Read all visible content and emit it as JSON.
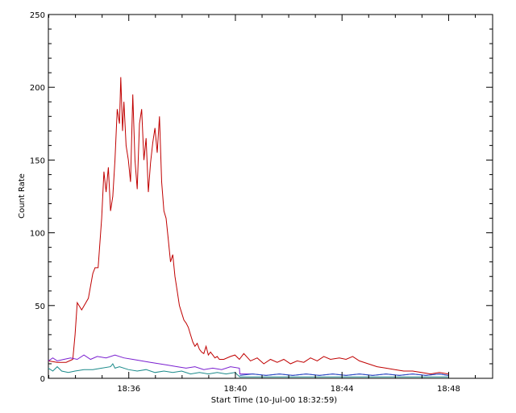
{
  "chart_data": {
    "type": "line",
    "xlabel": "Start Time (10-Jul-00 18:32:59)",
    "ylabel": "Count Rate",
    "xlim": [
      0,
      1000
    ],
    "ylim": [
      0,
      250
    ],
    "x_unit": "seconds since 18:32:59",
    "x_ticks": [
      {
        "value": 181,
        "label": "18:36"
      },
      {
        "value": 421,
        "label": "18:40"
      },
      {
        "value": 661,
        "label": "18:44"
      },
      {
        "value": 901,
        "label": "18:48"
      }
    ],
    "y_ticks": [
      {
        "value": 0,
        "label": "0"
      },
      {
        "value": 50,
        "label": "50"
      },
      {
        "value": 100,
        "label": "100"
      },
      {
        "value": 150,
        "label": "150"
      },
      {
        "value": 200,
        "label": "200"
      },
      {
        "value": 250,
        "label": "250"
      }
    ],
    "series": [
      {
        "color": "#c00000",
        "points": [
          [
            0,
            12
          ],
          [
            20,
            11
          ],
          [
            40,
            11
          ],
          [
            55,
            13
          ],
          [
            60,
            30
          ],
          [
            65,
            52
          ],
          [
            75,
            47
          ],
          [
            90,
            55
          ],
          [
            100,
            72
          ],
          [
            105,
            76
          ],
          [
            112,
            76
          ],
          [
            120,
            110
          ],
          [
            125,
            142
          ],
          [
            130,
            128
          ],
          [
            135,
            145
          ],
          [
            140,
            115
          ],
          [
            145,
            125
          ],
          [
            150,
            150
          ],
          [
            155,
            185
          ],
          [
            160,
            175
          ],
          [
            163,
            207
          ],
          [
            167,
            170
          ],
          [
            170,
            190
          ],
          [
            175,
            160
          ],
          [
            180,
            150
          ],
          [
            185,
            135
          ],
          [
            190,
            195
          ],
          [
            195,
            150
          ],
          [
            200,
            130
          ],
          [
            205,
            175
          ],
          [
            210,
            185
          ],
          [
            215,
            150
          ],
          [
            220,
            165
          ],
          [
            225,
            128
          ],
          [
            230,
            148
          ],
          [
            235,
            162
          ],
          [
            240,
            172
          ],
          [
            245,
            155
          ],
          [
            250,
            180
          ],
          [
            255,
            135
          ],
          [
            260,
            115
          ],
          [
            265,
            110
          ],
          [
            270,
            95
          ],
          [
            275,
            80
          ],
          [
            280,
            85
          ],
          [
            285,
            70
          ],
          [
            290,
            60
          ],
          [
            295,
            50
          ],
          [
            300,
            45
          ],
          [
            305,
            40
          ],
          [
            310,
            38
          ],
          [
            315,
            35
          ],
          [
            320,
            30
          ],
          [
            325,
            25
          ],
          [
            330,
            22
          ],
          [
            335,
            24
          ],
          [
            340,
            20
          ],
          [
            345,
            18
          ],
          [
            350,
            17
          ],
          [
            355,
            22
          ],
          [
            360,
            16
          ],
          [
            365,
            18
          ],
          [
            370,
            16
          ],
          [
            375,
            14
          ],
          [
            380,
            15
          ],
          [
            385,
            13
          ],
          [
            395,
            13
          ],
          [
            410,
            15
          ],
          [
            420,
            16
          ],
          [
            430,
            13
          ],
          [
            440,
            17
          ],
          [
            455,
            12
          ],
          [
            470,
            14
          ],
          [
            485,
            10
          ],
          [
            500,
            13
          ],
          [
            515,
            11
          ],
          [
            530,
            13
          ],
          [
            545,
            10
          ],
          [
            560,
            12
          ],
          [
            575,
            11
          ],
          [
            590,
            14
          ],
          [
            605,
            12
          ],
          [
            620,
            15
          ],
          [
            635,
            13
          ],
          [
            655,
            14
          ],
          [
            670,
            13
          ],
          [
            685,
            15
          ],
          [
            700,
            12
          ],
          [
            720,
            10
          ],
          [
            740,
            8
          ],
          [
            760,
            7
          ],
          [
            780,
            6
          ],
          [
            800,
            5
          ],
          [
            820,
            5
          ],
          [
            840,
            4
          ],
          [
            860,
            3
          ],
          [
            880,
            4
          ],
          [
            900,
            3
          ]
        ]
      },
      {
        "color": "#7a1fd0",
        "points": [
          [
            0,
            12
          ],
          [
            10,
            14
          ],
          [
            20,
            12
          ],
          [
            35,
            13
          ],
          [
            50,
            14
          ],
          [
            65,
            13
          ],
          [
            80,
            16
          ],
          [
            95,
            13
          ],
          [
            110,
            15
          ],
          [
            130,
            14
          ],
          [
            150,
            16
          ],
          [
            170,
            14
          ],
          [
            190,
            13
          ],
          [
            210,
            12
          ],
          [
            230,
            11
          ],
          [
            250,
            10
          ],
          [
            270,
            9
          ],
          [
            290,
            8
          ],
          [
            310,
            7
          ],
          [
            330,
            8
          ],
          [
            350,
            6
          ],
          [
            370,
            7
          ],
          [
            390,
            6
          ],
          [
            410,
            8
          ],
          [
            430,
            7
          ],
          [
            431,
            3
          ],
          [
            460,
            3
          ],
          [
            490,
            2
          ],
          [
            520,
            3
          ],
          [
            550,
            2
          ],
          [
            580,
            3
          ],
          [
            610,
            2
          ],
          [
            640,
            3
          ],
          [
            670,
            2
          ],
          [
            700,
            3
          ],
          [
            730,
            2
          ],
          [
            760,
            3
          ],
          [
            790,
            2
          ],
          [
            820,
            3
          ],
          [
            850,
            2
          ],
          [
            880,
            3
          ],
          [
            900,
            2
          ]
        ]
      },
      {
        "color": "#1a8a8a",
        "points": [
          [
            0,
            7
          ],
          [
            10,
            5
          ],
          [
            20,
            8
          ],
          [
            30,
            5
          ],
          [
            45,
            4
          ],
          [
            60,
            5
          ],
          [
            80,
            6
          ],
          [
            100,
            6
          ],
          [
            120,
            7
          ],
          [
            140,
            8
          ],
          [
            145,
            10
          ],
          [
            150,
            7
          ],
          [
            160,
            8
          ],
          [
            180,
            6
          ],
          [
            200,
            5
          ],
          [
            220,
            6
          ],
          [
            240,
            4
          ],
          [
            260,
            5
          ],
          [
            280,
            4
          ],
          [
            300,
            5
          ],
          [
            320,
            3
          ],
          [
            340,
            4
          ],
          [
            360,
            3
          ],
          [
            380,
            4
          ],
          [
            400,
            3
          ],
          [
            420,
            4
          ],
          [
            431,
            1
          ],
          [
            900,
            1
          ]
        ]
      },
      {
        "color": "#2050c0",
        "points": [
          [
            431,
            2
          ],
          [
            460,
            3
          ],
          [
            490,
            2
          ],
          [
            520,
            3
          ],
          [
            550,
            2
          ],
          [
            580,
            3
          ],
          [
            610,
            2
          ],
          [
            640,
            3
          ],
          [
            670,
            2
          ],
          [
            700,
            3
          ],
          [
            730,
            2
          ],
          [
            760,
            3
          ],
          [
            790,
            2
          ],
          [
            820,
            3
          ],
          [
            850,
            2
          ],
          [
            880,
            3
          ],
          [
            900,
            2
          ]
        ]
      }
    ]
  }
}
